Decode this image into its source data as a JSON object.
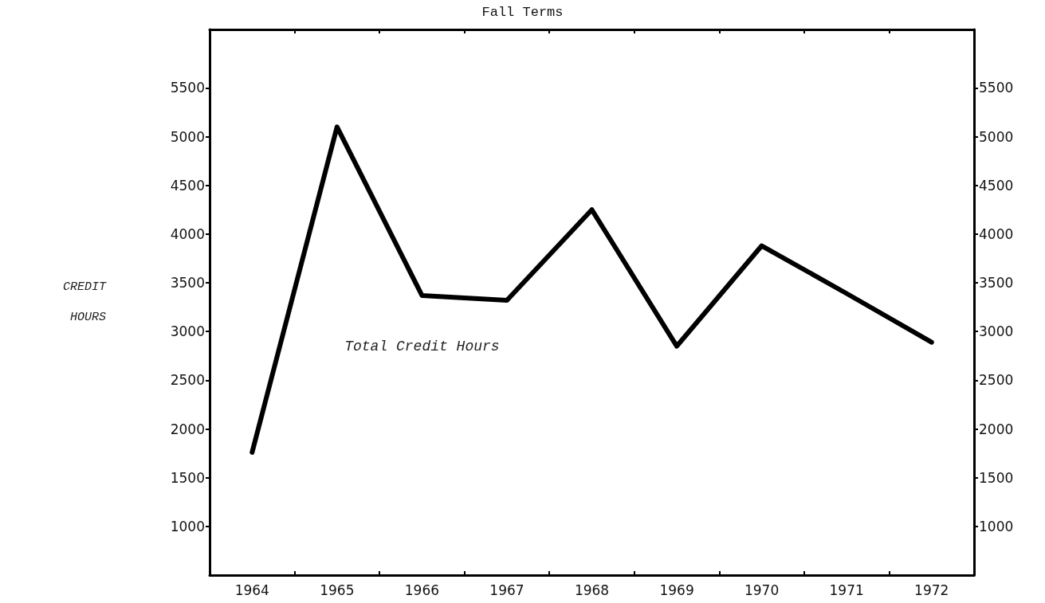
{
  "chart_data": {
    "type": "line",
    "title": "Fall Terms",
    "ylabel": "CREDIT HOURS",
    "categories": [
      "1964",
      "1965",
      "1966",
      "1967",
      "1968",
      "1969",
      "1970",
      "1971",
      "1972"
    ],
    "series": [
      {
        "name": "Total Credit Hours",
        "color": "#000000",
        "values": [
          1760,
          5100,
          3370,
          3320,
          4250,
          2850,
          3880,
          3390,
          2890
        ]
      }
    ],
    "ylim": [
      500,
      6100
    ],
    "yticks": [
      1000,
      1500,
      2000,
      2500,
      3000,
      3500,
      4000,
      4500,
      5000,
      5500
    ],
    "y2lim": [
      500,
      6100
    ],
    "y2ticks": [
      1000,
      1500,
      2000,
      2500,
      3000,
      3500,
      4000,
      4500,
      5000,
      5500
    ],
    "grid": false,
    "legend": false,
    "marker": "none",
    "line_style": "solid"
  }
}
